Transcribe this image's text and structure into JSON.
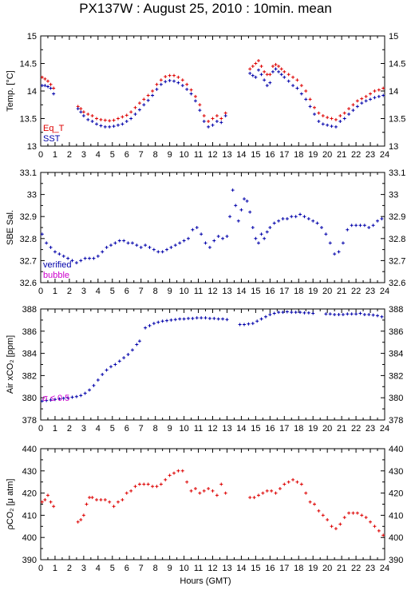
{
  "title": "PX137W : August 25, 2010 : 10min. mean",
  "x_axis_label": "Hours (GMT)",
  "colors": {
    "red": "#dd0000",
    "blue": "#0000aa",
    "magenta": "#cc00cc",
    "black": "#000000"
  },
  "chart_data": [
    {
      "type": "scatter",
      "ylabel": "Temp. [°C]",
      "xlim": [
        0,
        24
      ],
      "ylim": [
        13,
        15
      ],
      "yticks": [
        13,
        13.5,
        14,
        14.5,
        15
      ],
      "ytick_labels": [
        "13",
        "13.5",
        "14",
        "14.5",
        "15"
      ],
      "legend": [
        "Eq_T",
        "SST"
      ],
      "legend_placement": "bottom-left",
      "series": [
        {
          "name": "Eq_T",
          "color": "#dd0000",
          "x": [
            0.1,
            0.3,
            0.5,
            0.7,
            0.9,
            2.6,
            2.8,
            3.0,
            3.3,
            3.6,
            3.9,
            4.2,
            4.5,
            4.8,
            5.1,
            5.4,
            5.7,
            6.0,
            6.3,
            6.6,
            6.9,
            7.2,
            7.5,
            7.8,
            8.1,
            8.4,
            8.7,
            9.0,
            9.3,
            9.6,
            9.9,
            10.2,
            10.5,
            10.8,
            11.1,
            11.4,
            11.7,
            12.0,
            12.3,
            12.6,
            12.9,
            14.6,
            14.8,
            15.0,
            15.2,
            15.4,
            15.6,
            15.8,
            16.0,
            16.2,
            16.4,
            16.6,
            16.8,
            17.0,
            17.3,
            17.6,
            17.9,
            18.2,
            18.5,
            18.8,
            19.1,
            19.4,
            19.7,
            20.0,
            20.3,
            20.6,
            20.9,
            21.2,
            21.5,
            21.8,
            22.1,
            22.4,
            22.7,
            23.0,
            23.3,
            23.6,
            23.9
          ],
          "y": [
            14.25,
            14.22,
            14.18,
            14.12,
            14.05,
            13.72,
            13.68,
            13.62,
            13.58,
            13.55,
            13.5,
            13.48,
            13.47,
            13.46,
            13.47,
            13.5,
            13.53,
            13.56,
            13.62,
            13.7,
            13.78,
            13.85,
            13.92,
            14.0,
            14.12,
            14.2,
            14.26,
            14.28,
            14.28,
            14.25,
            14.2,
            14.12,
            14.02,
            13.9,
            13.75,
            13.55,
            13.45,
            13.5,
            13.55,
            13.5,
            13.6,
            14.4,
            14.45,
            14.5,
            14.55,
            14.45,
            14.35,
            14.3,
            14.3,
            14.45,
            14.48,
            14.45,
            14.4,
            14.35,
            14.3,
            14.25,
            14.2,
            14.1,
            14.0,
            13.85,
            13.7,
            13.6,
            13.55,
            13.52,
            13.5,
            13.48,
            13.55,
            13.6,
            13.68,
            13.75,
            13.82,
            13.86,
            13.9,
            13.95,
            14.0,
            14.02,
            14.05
          ]
        },
        {
          "name": "SST",
          "color": "#0000aa",
          "x": [
            0.1,
            0.3,
            0.5,
            0.7,
            0.9,
            2.6,
            2.8,
            3.0,
            3.3,
            3.6,
            3.9,
            4.2,
            4.5,
            4.8,
            5.1,
            5.4,
            5.7,
            6.0,
            6.3,
            6.6,
            6.9,
            7.2,
            7.5,
            7.8,
            8.1,
            8.4,
            8.7,
            9.0,
            9.3,
            9.6,
            9.9,
            10.2,
            10.5,
            10.8,
            11.1,
            11.4,
            11.7,
            12.0,
            12.3,
            12.6,
            12.9,
            14.6,
            14.8,
            15.0,
            15.2,
            15.4,
            15.6,
            15.8,
            16.0,
            16.2,
            16.4,
            16.6,
            16.8,
            17.0,
            17.3,
            17.6,
            17.9,
            18.2,
            18.5,
            18.8,
            19.1,
            19.4,
            19.7,
            20.0,
            20.3,
            20.6,
            20.9,
            21.2,
            21.5,
            21.8,
            22.1,
            22.4,
            22.7,
            23.0,
            23.3,
            23.6,
            23.9
          ],
          "y": [
            14.1,
            14.1,
            14.08,
            14.05,
            13.95,
            13.68,
            13.62,
            13.55,
            13.48,
            13.45,
            13.4,
            13.37,
            13.35,
            13.35,
            13.36,
            13.38,
            13.4,
            13.45,
            13.5,
            13.58,
            13.66,
            13.75,
            13.83,
            13.92,
            14.03,
            14.12,
            14.17,
            14.19,
            14.18,
            14.15,
            14.1,
            14.03,
            13.95,
            13.82,
            13.65,
            13.45,
            13.35,
            13.38,
            13.45,
            13.43,
            13.55,
            14.32,
            14.28,
            14.25,
            14.38,
            14.3,
            14.2,
            14.1,
            14.15,
            14.35,
            14.4,
            14.35,
            14.3,
            14.25,
            14.18,
            14.1,
            14.05,
            13.95,
            13.85,
            13.72,
            13.58,
            13.45,
            13.4,
            13.38,
            13.36,
            13.35,
            13.45,
            13.5,
            13.58,
            13.65,
            13.72,
            13.78,
            13.82,
            13.85,
            13.88,
            13.9,
            13.92
          ]
        }
      ]
    },
    {
      "type": "scatter",
      "ylabel": "SBE Sal.",
      "xlim": [
        0,
        24
      ],
      "ylim": [
        32.6,
        33.1
      ],
      "yticks": [
        32.6,
        32.7,
        32.8,
        32.9,
        33,
        33.1
      ],
      "ytick_labels": [
        "32.6",
        "32.7",
        "32.8",
        "32.9",
        "33",
        "33.1"
      ],
      "legend": [
        "verified",
        "bubble"
      ],
      "legend_placement": "bottom-left",
      "series": [
        {
          "name": "verified",
          "color": "#0000aa",
          "x": [
            0.1,
            0.4,
            0.7,
            1.0,
            1.3,
            1.6,
            1.9,
            2.2,
            2.5,
            2.8,
            3.1,
            3.4,
            3.7,
            4.0,
            4.3,
            4.6,
            4.9,
            5.2,
            5.5,
            5.8,
            6.1,
            6.4,
            6.7,
            7.0,
            7.3,
            7.6,
            7.9,
            8.2,
            8.5,
            8.8,
            9.1,
            9.4,
            9.7,
            10.0,
            10.3,
            10.6,
            10.9,
            11.2,
            11.5,
            11.8,
            12.1,
            12.4,
            12.7,
            13.0,
            13.2,
            13.4,
            13.6,
            13.8,
            14.0,
            14.2,
            14.4,
            14.6,
            14.8,
            15.0,
            15.2,
            15.4,
            15.6,
            15.8,
            16.0,
            16.3,
            16.6,
            16.9,
            17.2,
            17.5,
            17.8,
            18.1,
            18.4,
            18.7,
            19.0,
            19.3,
            19.6,
            19.9,
            20.2,
            20.5,
            20.8,
            21.1,
            21.4,
            21.7,
            22.0,
            22.3,
            22.6,
            22.9,
            23.2,
            23.5,
            23.8
          ],
          "y": [
            32.82,
            32.78,
            32.76,
            32.74,
            32.73,
            32.72,
            32.71,
            32.7,
            32.69,
            32.7,
            32.71,
            32.71,
            32.71,
            32.72,
            32.74,
            32.76,
            32.77,
            32.78,
            32.79,
            32.79,
            32.78,
            32.78,
            32.77,
            32.76,
            32.77,
            32.76,
            32.75,
            32.74,
            32.74,
            32.75,
            32.76,
            32.77,
            32.78,
            32.79,
            32.8,
            32.84,
            32.85,
            32.82,
            32.78,
            32.76,
            32.79,
            32.81,
            32.8,
            32.81,
            32.9,
            33.02,
            32.95,
            32.88,
            32.93,
            32.98,
            32.97,
            32.92,
            32.85,
            32.8,
            32.78,
            32.82,
            32.8,
            32.83,
            32.85,
            32.87,
            32.88,
            32.89,
            32.89,
            32.9,
            32.9,
            32.91,
            32.9,
            32.89,
            32.88,
            32.87,
            32.85,
            32.82,
            32.78,
            32.73,
            32.74,
            32.78,
            32.84,
            32.86,
            32.86,
            32.86,
            32.86,
            32.85,
            32.86,
            32.88,
            32.89
          ]
        }
      ]
    },
    {
      "type": "scatter",
      "ylabel": "Air xCO₂ [ppm]",
      "xlim": [
        0,
        24
      ],
      "ylim": [
        378,
        388
      ],
      "yticks": [
        378,
        380,
        382,
        384,
        386,
        388
      ],
      "ytick_labels": [
        "378",
        "380",
        "382",
        "384",
        "386",
        "388"
      ],
      "annotation": "σ ≤ 0.5",
      "series": [
        {
          "name": "",
          "color": "#0000aa",
          "x": [
            0.1,
            0.4,
            0.7,
            1.0,
            1.3,
            1.6,
            1.9,
            2.2,
            2.5,
            2.8,
            3.1,
            3.4,
            3.7,
            4.0,
            4.3,
            4.6,
            4.9,
            5.2,
            5.5,
            5.8,
            6.1,
            6.4,
            6.7,
            6.9,
            7.3,
            7.6,
            7.9,
            8.2,
            8.5,
            8.8,
            9.1,
            9.4,
            9.7,
            10.0,
            10.3,
            10.6,
            10.9,
            11.2,
            11.5,
            11.8,
            12.1,
            12.4,
            12.7,
            13.0,
            13.9,
            14.2,
            14.5,
            14.8,
            15.1,
            15.4,
            15.7,
            16.0,
            16.3,
            16.6,
            16.9,
            17.2,
            17.5,
            17.8,
            18.1,
            18.4,
            18.7,
            19.0,
            19.9,
            20.2,
            20.5,
            20.8,
            21.1,
            21.4,
            21.7,
            22.0,
            22.3,
            22.6,
            22.9,
            23.2,
            23.5,
            23.8
          ],
          "y": [
            379.7,
            379.75,
            379.8,
            379.85,
            379.9,
            379.95,
            380.0,
            380.05,
            380.1,
            380.2,
            380.4,
            380.7,
            381.1,
            381.6,
            382.1,
            382.5,
            382.8,
            383.0,
            383.3,
            383.6,
            383.9,
            384.3,
            384.8,
            385.1,
            386.3,
            386.5,
            386.7,
            386.8,
            386.9,
            386.95,
            387.0,
            387.05,
            387.1,
            387.1,
            387.15,
            387.15,
            387.2,
            387.2,
            387.2,
            387.15,
            387.15,
            387.1,
            387.1,
            387.05,
            386.6,
            386.6,
            386.65,
            386.7,
            386.9,
            387.1,
            387.3,
            387.5,
            387.6,
            387.7,
            387.7,
            387.75,
            387.7,
            387.7,
            387.7,
            387.65,
            387.65,
            387.6,
            387.55,
            387.55,
            387.5,
            387.5,
            387.5,
            387.55,
            387.55,
            387.55,
            387.6,
            387.5,
            387.5,
            387.45,
            387.4,
            387.3
          ]
        }
      ]
    },
    {
      "type": "scatter",
      "ylabel": "ρCO₂ [μ atm]",
      "xlim": [
        0,
        24
      ],
      "ylim": [
        390,
        440
      ],
      "yticks": [
        390,
        400,
        410,
        420,
        430,
        440
      ],
      "ytick_labels": [
        "390",
        "400",
        "410",
        "420",
        "430",
        "440"
      ],
      "series": [
        {
          "name": "",
          "color": "#dd0000",
          "x": [
            0.1,
            0.3,
            0.5,
            0.7,
            0.9,
            2.6,
            2.8,
            3.0,
            3.2,
            3.4,
            3.6,
            3.9,
            4.2,
            4.5,
            4.8,
            5.1,
            5.4,
            5.7,
            6.0,
            6.3,
            6.6,
            6.9,
            7.2,
            7.5,
            7.8,
            8.1,
            8.4,
            8.7,
            9.0,
            9.3,
            9.6,
            9.9,
            10.2,
            10.5,
            10.8,
            11.1,
            11.4,
            11.7,
            12.0,
            12.3,
            12.6,
            12.9,
            14.6,
            14.9,
            15.2,
            15.5,
            15.8,
            16.1,
            16.4,
            16.7,
            17.0,
            17.3,
            17.6,
            17.9,
            18.2,
            18.5,
            18.8,
            19.1,
            19.4,
            19.7,
            20.0,
            20.3,
            20.6,
            20.9,
            21.2,
            21.5,
            21.8,
            22.1,
            22.4,
            22.7,
            23.0,
            23.3,
            23.6,
            23.9
          ],
          "y": [
            416,
            417,
            419,
            416,
            414,
            407,
            408,
            410,
            415,
            418,
            418,
            417,
            417,
            417,
            416,
            414,
            416,
            417,
            420,
            421,
            423,
            424,
            424,
            424,
            423,
            423,
            424,
            426,
            428,
            429,
            430,
            430,
            425,
            421,
            422,
            420,
            421,
            422,
            421,
            419,
            424,
            420,
            418,
            418,
            419,
            420,
            421,
            421,
            420,
            422,
            424,
            425,
            426,
            425,
            424,
            420,
            416,
            415,
            412,
            410,
            408,
            405,
            404,
            406,
            409,
            411,
            411,
            411,
            410,
            409,
            407,
            405,
            403,
            401
          ]
        }
      ]
    }
  ]
}
